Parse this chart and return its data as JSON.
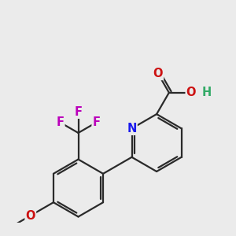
{
  "bg_color": "#ebebeb",
  "bond_color": "#2a2a2a",
  "bond_width": 1.6,
  "atom_colors": {
    "N": "#1a1aee",
    "O": "#cc1111",
    "F": "#bb00bb",
    "H": "#33aa66",
    "C": "#2a2a2a"
  },
  "font_size": 10.5
}
